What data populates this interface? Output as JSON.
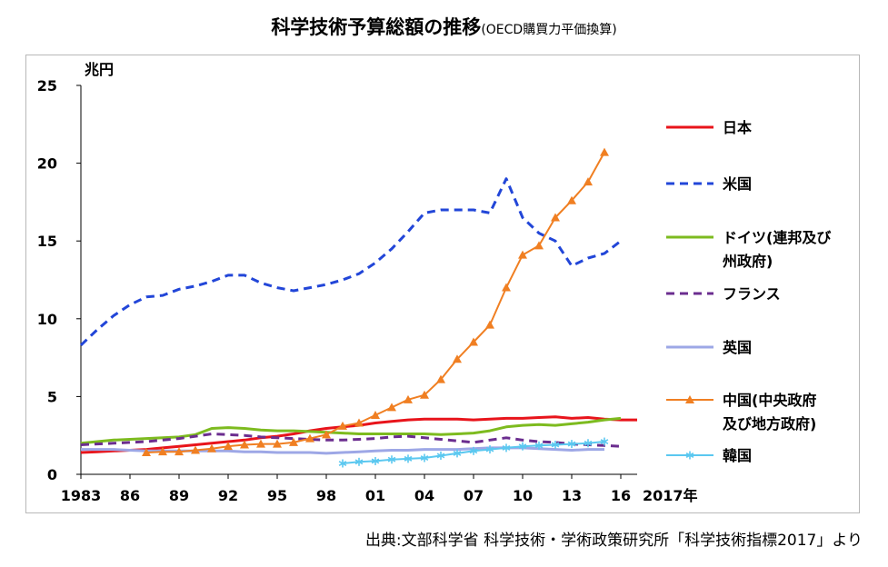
{
  "title": "科学技術予算総額の推移",
  "subtitle": "(OECD購買力平価換算)",
  "source": "出典:文部科学省 科学技術・学術政策研究所「科学技術指標2017」より",
  "chart_data": {
    "type": "line",
    "title": "科学技術予算総額の推移",
    "subtitle": "(OECD購買力平価換算)",
    "ylabel": "兆円",
    "xlabel": "2017年",
    "ylim": [
      0,
      25
    ],
    "xlim": [
      1983,
      2017
    ],
    "yticks": [
      "0",
      "5",
      "10",
      "15",
      "20",
      "25"
    ],
    "yticks_values": [
      0,
      5,
      10,
      15,
      20,
      25
    ],
    "xticks": [
      "1983",
      "86",
      "89",
      "92",
      "95",
      "98",
      "01",
      "04",
      "07",
      "10",
      "13",
      "16"
    ],
    "xticks_values": [
      1983,
      1986,
      1989,
      1992,
      1995,
      1998,
      2001,
      2004,
      2007,
      2010,
      2013,
      2016
    ],
    "grid": false,
    "legend": "right",
    "series": [
      {
        "name": "日本",
        "legend": [
          "日本"
        ],
        "color": "#e8141b",
        "dash": "solid",
        "marker": "none",
        "x": [
          1983,
          1984,
          1985,
          1986,
          1987,
          1988,
          1989,
          1990,
          1991,
          1992,
          1993,
          1994,
          1995,
          1996,
          1997,
          1998,
          1999,
          2000,
          2001,
          2002,
          2003,
          2004,
          2005,
          2006,
          2007,
          2008,
          2009,
          2010,
          2011,
          2012,
          2013,
          2014,
          2015,
          2016,
          2017
        ],
        "values": [
          1.4,
          1.45,
          1.5,
          1.55,
          1.6,
          1.7,
          1.8,
          1.9,
          2.0,
          2.1,
          2.2,
          2.35,
          2.45,
          2.6,
          2.8,
          2.95,
          3.05,
          3.15,
          3.3,
          3.4,
          3.5,
          3.55,
          3.55,
          3.55,
          3.5,
          3.55,
          3.6,
          3.6,
          3.65,
          3.7,
          3.6,
          3.65,
          3.55,
          3.5,
          3.5
        ]
      },
      {
        "name": "米国",
        "legend": [
          "米国"
        ],
        "color": "#2246d8",
        "dash": "dashed",
        "marker": "none",
        "x": [
          1983,
          1984,
          1985,
          1986,
          1987,
          1988,
          1989,
          1990,
          1991,
          1992,
          1993,
          1994,
          1995,
          1996,
          1997,
          1998,
          1999,
          2000,
          2001,
          2002,
          2003,
          2004,
          2005,
          2006,
          2007,
          2008,
          2009,
          2010,
          2011,
          2012,
          2013,
          2014,
          2015,
          2016
        ],
        "values": [
          8.3,
          9.3,
          10.2,
          10.9,
          11.4,
          11.5,
          11.9,
          12.1,
          12.4,
          12.8,
          12.8,
          12.3,
          12.0,
          11.8,
          12.0,
          12.2,
          12.5,
          12.9,
          13.6,
          14.5,
          15.6,
          16.8,
          17.0,
          17.0,
          17.0,
          16.8,
          19.0,
          16.5,
          15.5,
          15.0,
          13.4,
          13.9,
          14.2,
          15.0
        ]
      },
      {
        "name": "ドイツ(連邦及び州政府)",
        "legend": [
          "ドイツ(連邦及び",
          "州政府)"
        ],
        "color": "#7dbb1f",
        "dash": "solid",
        "marker": "none",
        "x": [
          1983,
          1984,
          1985,
          1986,
          1987,
          1988,
          1989,
          1990,
          1991,
          1992,
          1993,
          1994,
          1995,
          1996,
          1997,
          1998,
          1999,
          2000,
          2001,
          2002,
          2003,
          2004,
          2005,
          2006,
          2007,
          2008,
          2009,
          2010,
          2011,
          2012,
          2013,
          2014,
          2015,
          2016
        ],
        "values": [
          2.0,
          2.1,
          2.2,
          2.25,
          2.3,
          2.35,
          2.4,
          2.55,
          2.95,
          3.0,
          2.95,
          2.85,
          2.8,
          2.8,
          2.75,
          2.7,
          2.65,
          2.6,
          2.6,
          2.6,
          2.6,
          2.6,
          2.55,
          2.6,
          2.65,
          2.8,
          3.05,
          3.15,
          3.2,
          3.15,
          3.25,
          3.35,
          3.5,
          3.6
        ]
      },
      {
        "name": "フランス",
        "legend": [
          "フランス"
        ],
        "color": "#6b2d8f",
        "dash": "dashed",
        "marker": "none",
        "x": [
          1983,
          1984,
          1985,
          1986,
          1987,
          1988,
          1989,
          1990,
          1991,
          1992,
          1993,
          1994,
          1995,
          1996,
          1997,
          1998,
          1999,
          2000,
          2001,
          2002,
          2003,
          2004,
          2005,
          2006,
          2007,
          2008,
          2009,
          2010,
          2011,
          2012,
          2013,
          2014,
          2015,
          2016
        ],
        "values": [
          1.9,
          1.95,
          2.0,
          2.05,
          2.1,
          2.2,
          2.3,
          2.45,
          2.6,
          2.55,
          2.5,
          2.4,
          2.35,
          2.3,
          2.25,
          2.2,
          2.2,
          2.25,
          2.3,
          2.4,
          2.45,
          2.35,
          2.25,
          2.15,
          2.05,
          2.2,
          2.35,
          2.2,
          2.1,
          2.05,
          1.95,
          1.9,
          1.85,
          1.8
        ]
      },
      {
        "name": "英国",
        "legend": [
          "英国"
        ],
        "color": "#9da7e6",
        "dash": "solid",
        "marker": "none",
        "x": [
          1983,
          1984,
          1985,
          1986,
          1987,
          1988,
          1989,
          1990,
          1991,
          1992,
          1993,
          1994,
          1995,
          1996,
          1997,
          1998,
          1999,
          2000,
          2001,
          2002,
          2003,
          2004,
          2005,
          2006,
          2007,
          2008,
          2009,
          2010,
          2011,
          2012,
          2013,
          2014,
          2015
        ],
        "values": [
          1.6,
          1.6,
          1.6,
          1.55,
          1.5,
          1.5,
          1.5,
          1.5,
          1.5,
          1.5,
          1.45,
          1.45,
          1.4,
          1.4,
          1.4,
          1.35,
          1.4,
          1.45,
          1.5,
          1.55,
          1.55,
          1.6,
          1.6,
          1.6,
          1.65,
          1.7,
          1.7,
          1.7,
          1.65,
          1.6,
          1.55,
          1.6,
          1.6
        ]
      },
      {
        "name": "中国(中央政府及び地方政府)",
        "legend": [
          "中国(中央政府",
          "及び地方政府)"
        ],
        "color": "#f07f22",
        "dash": "solid",
        "marker": "triangle",
        "x": [
          1987,
          1988,
          1989,
          1990,
          1991,
          1992,
          1993,
          1994,
          1995,
          1996,
          1997,
          1998,
          1999,
          2000,
          2001,
          2002,
          2003,
          2004,
          2005,
          2006,
          2007,
          2008,
          2009,
          2010,
          2011,
          2012,
          2013,
          2014,
          2015
        ],
        "values": [
          1.4,
          1.45,
          1.45,
          1.55,
          1.65,
          1.8,
          1.9,
          1.95,
          1.95,
          2.05,
          2.3,
          2.55,
          3.1,
          3.3,
          3.8,
          4.3,
          4.8,
          5.1,
          6.1,
          7.4,
          8.5,
          9.6,
          12.0,
          14.1,
          14.7,
          16.5,
          17.6,
          18.8,
          20.7
        ]
      },
      {
        "name": "韓国",
        "legend": [
          "韓国"
        ],
        "color": "#5bc8f0",
        "dash": "solid",
        "marker": "asterisk",
        "x": [
          1999,
          2000,
          2001,
          2002,
          2003,
          2004,
          2005,
          2006,
          2007,
          2008,
          2009,
          2010,
          2011,
          2012,
          2013,
          2014,
          2015
        ],
        "values": [
          0.7,
          0.8,
          0.85,
          0.95,
          1.0,
          1.05,
          1.2,
          1.35,
          1.5,
          1.6,
          1.7,
          1.8,
          1.85,
          1.9,
          1.95,
          2.0,
          2.1
        ]
      }
    ]
  }
}
